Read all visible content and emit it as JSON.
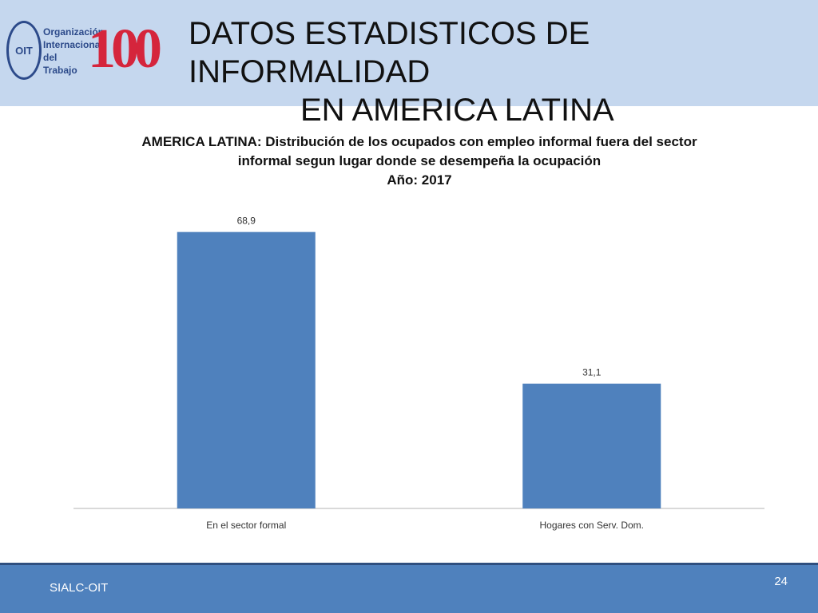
{
  "header": {
    "title_line1": "DATOS ESTADISTICOS DE INFORMALIDAD",
    "title_line2": "EN AMERICA LATINA",
    "logo": {
      "emblem": "OIT",
      "org_text": "Organización\nInternacional\ndel Trabajo",
      "anniversary": "100"
    }
  },
  "chart_data": {
    "type": "bar",
    "title_lines": [
      "AMERICA LATINA: Distribución de los ocupados con empleo informal fuera del sector",
      "informal segun lugar donde se desempeña la ocupación",
      "Año: 2017"
    ],
    "categories": [
      "En el sector formal",
      "Hogares con Serv. Dom."
    ],
    "values": [
      68.9,
      31.1
    ],
    "value_labels": [
      "68,9",
      "31,1"
    ],
    "ylim": [
      0,
      75
    ],
    "bar_color": "#4f81bd",
    "grid": false,
    "legend": "none"
  },
  "footer": {
    "left_label": "SIALC-OIT",
    "page_number": "24"
  },
  "colors": {
    "header_bg": "#c5d7ee",
    "footer_bg": "#4f81bd",
    "logo_red": "#d5253c",
    "logo_blue": "#2c4a8a"
  }
}
